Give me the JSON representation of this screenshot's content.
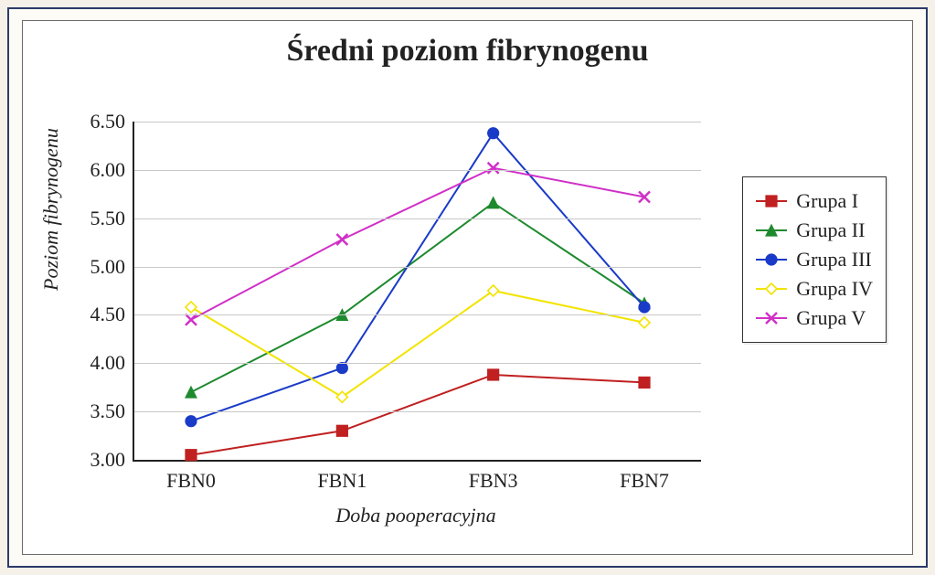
{
  "chart": {
    "type": "line",
    "title": "Średni poziom fibrynogenu",
    "title_fontsize": 34,
    "x_axis_title": "Doba pooperacyjna",
    "y_axis_title": "Poziom fibrynogenu",
    "axis_title_fontsize": 22,
    "axis_title_fontstyle": "italic",
    "tick_fontsize": 22,
    "background_color": "#ffffff",
    "grid_color": "#c9c9c9",
    "axis_color": "#222222",
    "line_width": 2,
    "marker_size": 12,
    "x_categories": [
      "FBN0",
      "FBN1",
      "FBN3",
      "FBN7"
    ],
    "x_positions_pct": [
      10,
      36.67,
      63.33,
      90
    ],
    "ylim": [
      3.0,
      6.5
    ],
    "ytick_step": 0.5,
    "y_ticks": [
      "3.00",
      "3.50",
      "4.00",
      "4.50",
      "5.00",
      "5.50",
      "6.00",
      "6.50"
    ],
    "series": [
      {
        "name": "Grupa I",
        "color": "#c02020",
        "marker": "square",
        "marker_fill": "#c02020",
        "values": [
          3.05,
          3.3,
          3.88,
          3.8
        ]
      },
      {
        "name": "Grupa II",
        "color": "#1e8a2e",
        "marker": "triangle",
        "marker_fill": "#1e8a2e",
        "values": [
          3.7,
          4.5,
          5.66,
          4.62
        ]
      },
      {
        "name": "Grupa III",
        "color": "#1a3ac8",
        "marker": "circle",
        "marker_fill": "#1a3ac8",
        "values": [
          3.4,
          3.95,
          6.38,
          4.58
        ]
      },
      {
        "name": "Grupa IV",
        "color": "#f2e400",
        "marker": "diamond",
        "marker_fill": "#ffffff",
        "values": [
          4.58,
          3.65,
          4.75,
          4.42
        ]
      },
      {
        "name": "Grupa V",
        "color": "#d030c8",
        "marker": "x",
        "marker_fill": "#d030c8",
        "values": [
          4.45,
          5.28,
          6.02,
          5.72
        ]
      }
    ],
    "legend": {
      "position": "right",
      "title": null,
      "items": [
        "Grupa I",
        "Grupa II",
        "Grupa III",
        "Grupa IV",
        "Grupa V"
      ]
    }
  }
}
